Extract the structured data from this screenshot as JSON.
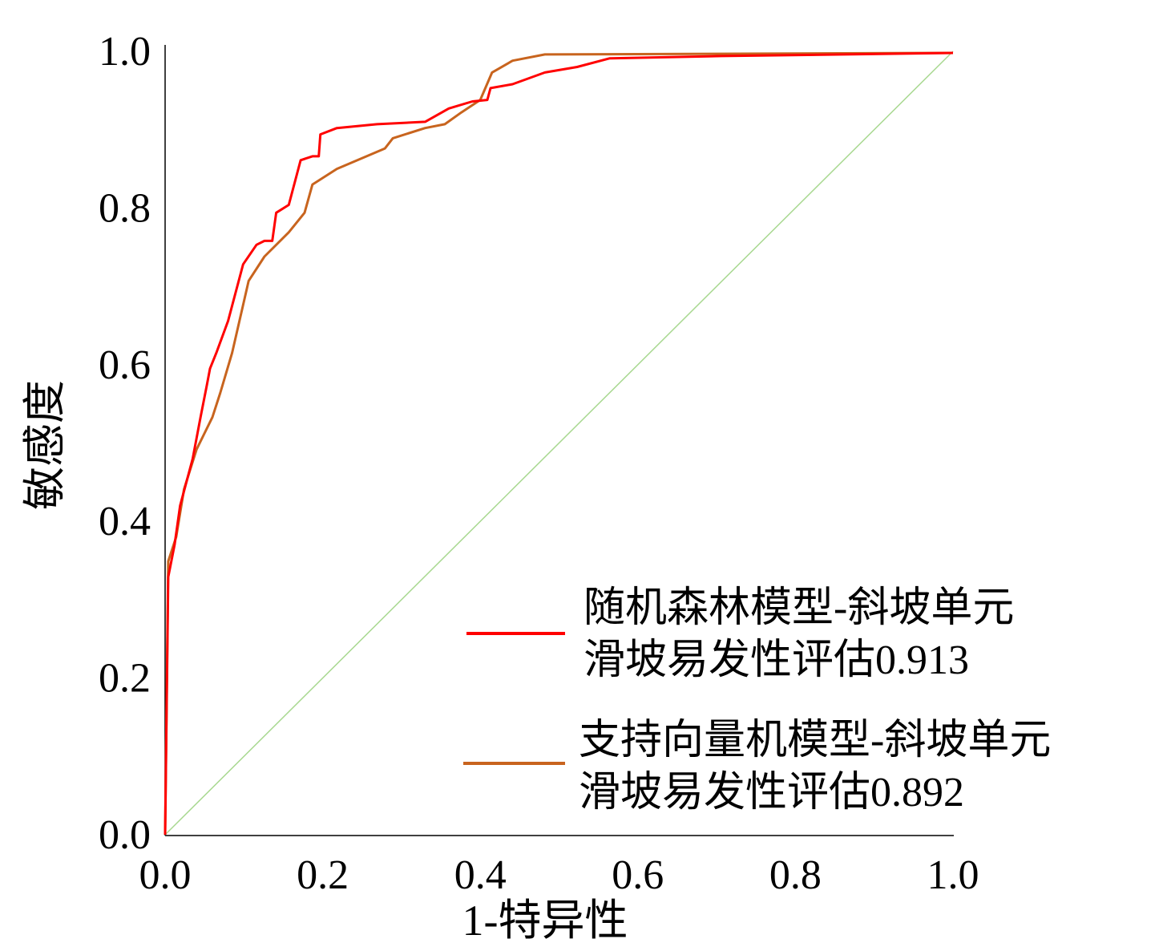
{
  "chart_data": {
    "type": "line",
    "title": "",
    "xlabel": "1-特异性",
    "ylabel": "敏感度",
    "xlim": [
      0,
      1
    ],
    "ylim": [
      0,
      1
    ],
    "xticks": [
      "0.0",
      "0.2",
      "0.4",
      "0.6",
      "0.8",
      "1.0"
    ],
    "yticks": [
      "0.0",
      "0.2",
      "0.4",
      "0.6",
      "0.8",
      "1.0"
    ],
    "grid": false,
    "legend_position": "bottom-right",
    "series": [
      {
        "name": "随机森林模型-斜坡单元滑坡易发性评估0.913",
        "legend_lines": [
          "随机森林模型-斜坡单元",
          "滑坡易发性评估0.913"
        ],
        "auc": 0.913,
        "color": "#ff0000",
        "x": [
          0,
          0.004,
          0.012,
          0.019,
          0.035,
          0.045,
          0.053,
          0.057,
          0.065,
          0.08,
          0.099,
          0.116,
          0.126,
          0.136,
          0.141,
          0.157,
          0.172,
          0.187,
          0.195,
          0.197,
          0.218,
          0.269,
          0.33,
          0.36,
          0.39,
          0.409,
          0.413,
          0.441,
          0.482,
          0.523,
          0.564,
          0.706,
          1.0
        ],
        "y": [
          0,
          0.329,
          0.37,
          0.42,
          0.48,
          0.533,
          0.574,
          0.595,
          0.615,
          0.656,
          0.728,
          0.753,
          0.758,
          0.758,
          0.794,
          0.804,
          0.861,
          0.866,
          0.866,
          0.894,
          0.902,
          0.907,
          0.91,
          0.927,
          0.936,
          0.938,
          0.953,
          0.958,
          0.973,
          0.98,
          0.991,
          0.994,
          0.998
        ]
      },
      {
        "name": "支持向量机模型-斜坡单元滑坡易发性评估0.892",
        "legend_lines": [
          "支持向量机模型-斜坡单元",
          "滑坡易发性评估0.892"
        ],
        "auc": 0.892,
        "color": "#c8641e",
        "x": [
          0,
          0.004,
          0.014,
          0.024,
          0.04,
          0.06,
          0.07,
          0.085,
          0.106,
          0.126,
          0.157,
          0.177,
          0.187,
          0.218,
          0.279,
          0.289,
          0.33,
          0.355,
          0.376,
          0.4,
          0.415,
          0.441,
          0.482,
          1.0
        ],
        "y": [
          0,
          0.349,
          0.38,
          0.441,
          0.492,
          0.533,
          0.564,
          0.615,
          0.707,
          0.738,
          0.769,
          0.794,
          0.83,
          0.85,
          0.876,
          0.889,
          0.902,
          0.907,
          0.922,
          0.938,
          0.973,
          0.988,
          0.996,
          0.998
        ]
      },
      {
        "name": "reference",
        "color": "#a8d890",
        "x": [
          0,
          1
        ],
        "y": [
          0,
          1
        ]
      }
    ]
  }
}
